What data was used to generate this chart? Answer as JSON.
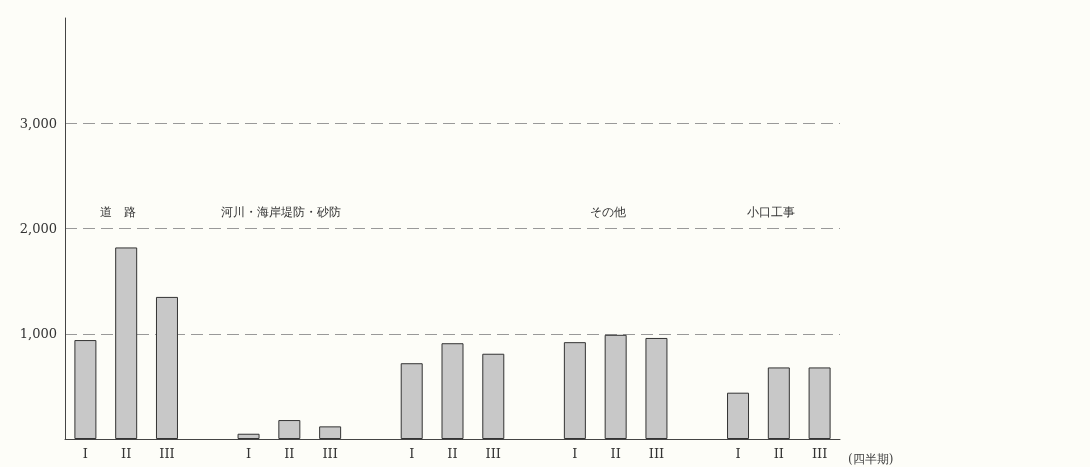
{
  "chart_data": {
    "type": "bar",
    "categories": [
      "I",
      "II",
      "III",
      null,
      "I",
      "II",
      "III",
      null,
      "I",
      "II",
      "III",
      null,
      "I",
      "II",
      "III",
      null,
      "I",
      "II",
      "III"
    ],
    "values": [
      940,
      1820,
      1350,
      null,
      50,
      180,
      120,
      null,
      720,
      910,
      810,
      null,
      920,
      990,
      960,
      null,
      440,
      680,
      680
    ],
    "color": "#c8c8c8",
    "xlabel": "(四半期)",
    "annotations": [
      "道　路",
      "河川・海岸堤防・砂防",
      "その他",
      "小口工事"
    ],
    "ylim": [
      0,
      4000
    ],
    "yticks": [
      {
        "value": 1000,
        "label": "1,000"
      },
      {
        "value": 2000,
        "label": "2,000"
      },
      {
        "value": 3000,
        "label": "3,000"
      }
    ],
    "grid": "y",
    "line_style": "dashed"
  }
}
